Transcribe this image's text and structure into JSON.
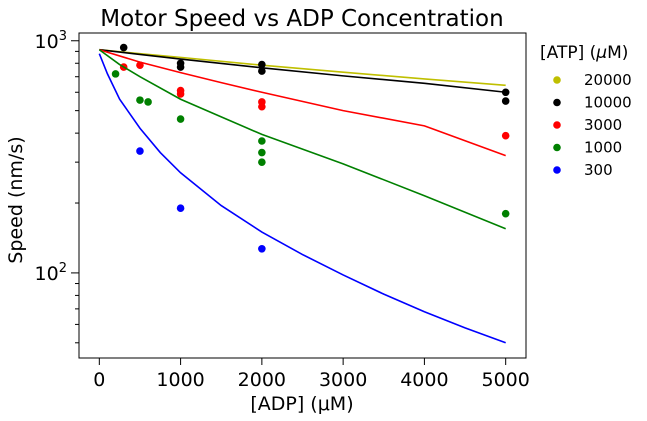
{
  "chart_data": {
    "type": "scatter",
    "title": "Motor Speed vs ADP Concentration",
    "xlabel": "[ADP] (μM)",
    "ylabel": "Speed (nm/s)",
    "xlim": [
      -250,
      5250
    ],
    "ylim": [
      43,
      1080
    ],
    "yscale": "log",
    "x_ticks": [
      0,
      1000,
      2000,
      3000,
      4000,
      5000
    ],
    "y_ticks": [
      {
        "value": 100,
        "label": "10",
        "exp": "2"
      },
      {
        "value": 1000,
        "label": "10",
        "exp": "3"
      }
    ],
    "grid": false,
    "legend": {
      "title_prefix": "[ATP] (",
      "title_mu": "μ",
      "title_suffix": "M)",
      "placement": "right, outside plot"
    },
    "series": [
      {
        "name": "20000",
        "color": "#bfbf00",
        "points": [],
        "fit": [
          [
            0,
            915
          ],
          [
            500,
            880
          ],
          [
            1000,
            848
          ],
          [
            2000,
            785
          ],
          [
            3000,
            732
          ],
          [
            4000,
            685
          ],
          [
            5000,
            643
          ]
        ]
      },
      {
        "name": "10000",
        "color": "#000000",
        "points": [
          [
            300,
            935
          ],
          [
            1000,
            770
          ],
          [
            1000,
            800
          ],
          [
            2000,
            740
          ],
          [
            2000,
            790
          ],
          [
            5000,
            600
          ],
          [
            5000,
            550
          ]
        ],
        "fit": [
          [
            0,
            915
          ],
          [
            500,
            873
          ],
          [
            1000,
            834
          ],
          [
            2000,
            765
          ],
          [
            3000,
            706
          ],
          [
            4000,
            656
          ],
          [
            5000,
            600
          ]
        ]
      },
      {
        "name": "3000",
        "color": "#ff0000",
        "points": [
          [
            300,
            770
          ],
          [
            500,
            785
          ],
          [
            1000,
            590
          ],
          [
            1000,
            610
          ],
          [
            2000,
            520
          ],
          [
            2000,
            545
          ],
          [
            5000,
            390
          ]
        ],
        "fit": [
          [
            0,
            915
          ],
          [
            500,
            809
          ],
          [
            1000,
            729
          ],
          [
            1500,
            660
          ],
          [
            2000,
            600
          ],
          [
            3000,
            500
          ],
          [
            4000,
            430
          ],
          [
            5000,
            320
          ]
        ]
      },
      {
        "name": "1000",
        "color": "#008000",
        "points": [
          [
            200,
            720
          ],
          [
            500,
            555
          ],
          [
            600,
            545
          ],
          [
            1000,
            460
          ],
          [
            2000,
            370
          ],
          [
            2000,
            330
          ],
          [
            2000,
            300
          ],
          [
            5000,
            180
          ]
        ],
        "fit": [
          [
            0,
            915
          ],
          [
            250,
            790
          ],
          [
            500,
            700
          ],
          [
            1000,
            560
          ],
          [
            1500,
            470
          ],
          [
            2000,
            395
          ],
          [
            3000,
            295
          ],
          [
            4000,
            215
          ],
          [
            5000,
            155
          ]
        ]
      },
      {
        "name": "300",
        "color": "#0000ff",
        "points": [
          [
            500,
            335
          ],
          [
            1000,
            190
          ],
          [
            2000,
            127
          ]
        ],
        "fit": [
          [
            0,
            880
          ],
          [
            100,
            720
          ],
          [
            250,
            560
          ],
          [
            500,
            420
          ],
          [
            750,
            330
          ],
          [
            1000,
            270
          ],
          [
            1500,
            195
          ],
          [
            2000,
            150
          ],
          [
            2500,
            120
          ],
          [
            3000,
            98
          ],
          [
            3500,
            81
          ],
          [
            4000,
            68
          ],
          [
            4500,
            58
          ],
          [
            5000,
            50
          ]
        ]
      }
    ]
  }
}
